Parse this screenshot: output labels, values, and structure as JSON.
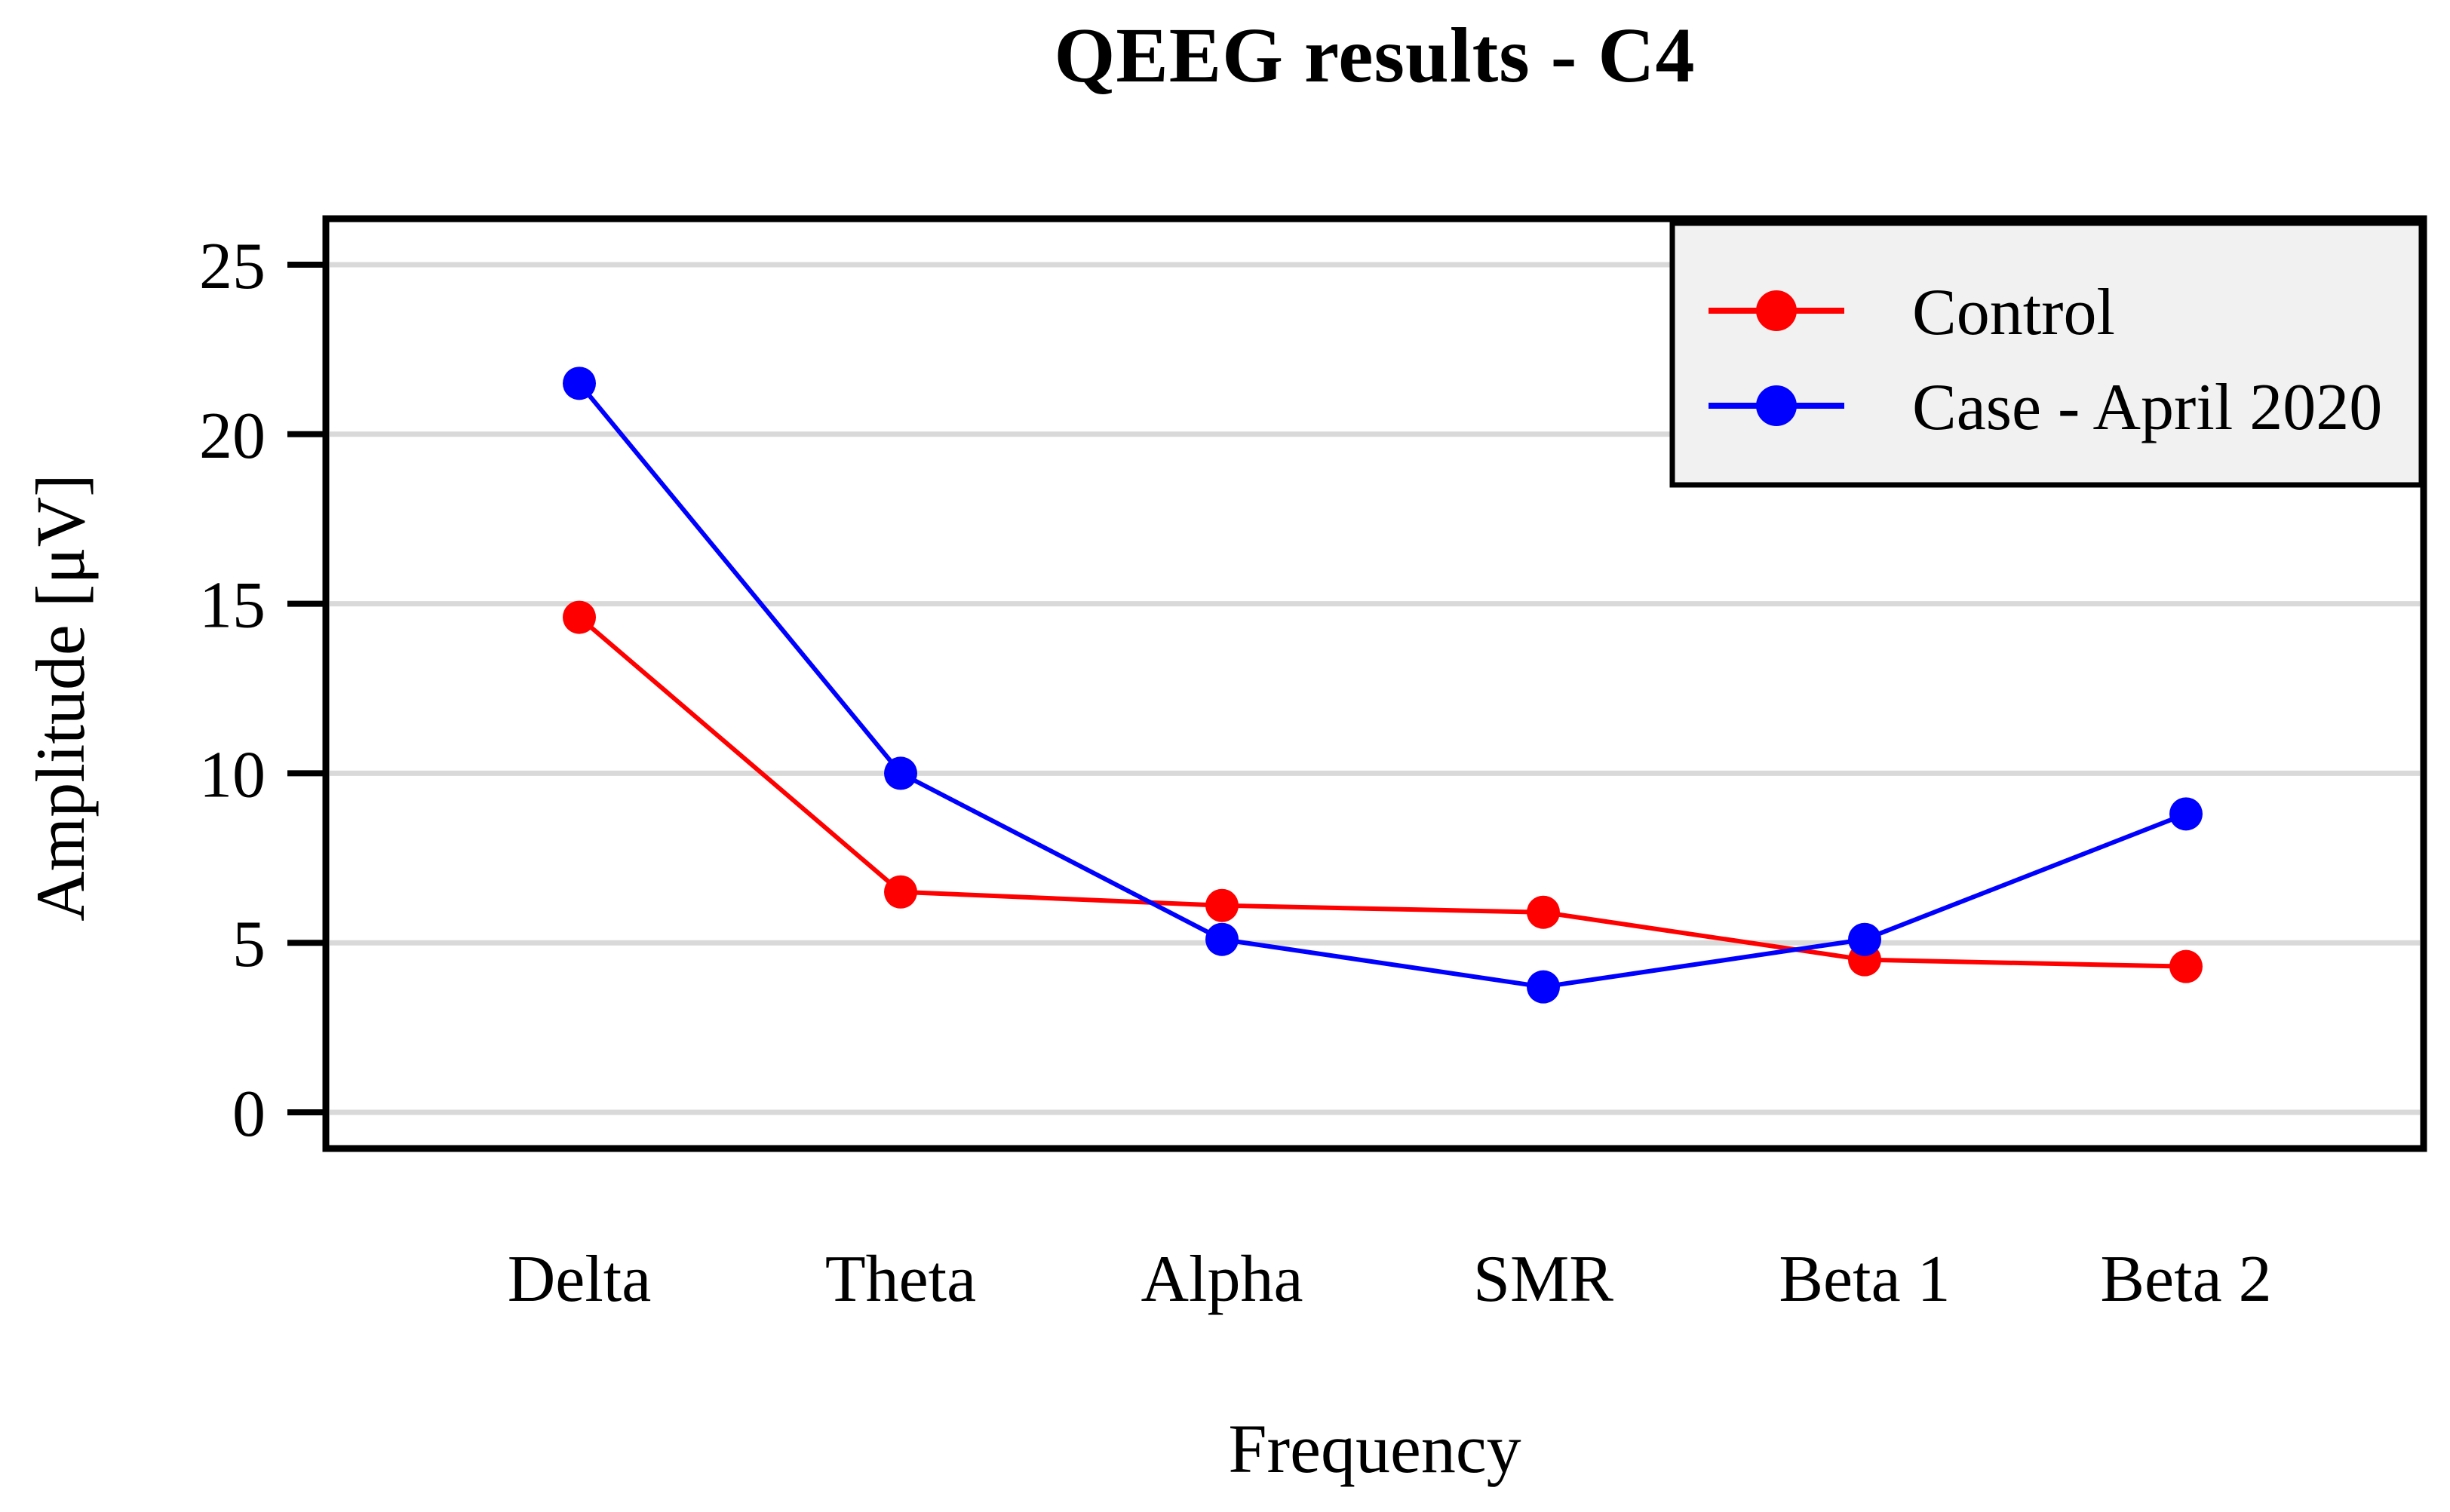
{
  "title": "QEEG results - C4",
  "chart_data": {
    "type": "line",
    "title": "QEEG results - C4",
    "xlabel": "Frequency",
    "ylabel": "Amplitude [μV]",
    "categories": [
      "Delta",
      "Theta",
      "Alpha",
      "SMR",
      "Beta 1",
      "Beta 2"
    ],
    "series": [
      {
        "name": "Control",
        "color": "#ff0000",
        "values": [
          14.6,
          6.5,
          6.1,
          5.9,
          4.5,
          4.3
        ]
      },
      {
        "name": "Case - April 2020",
        "color": "#0000ff",
        "values": [
          21.5,
          10.0,
          5.1,
          3.7,
          5.1,
          8.8
        ]
      }
    ],
    "ylim": [
      0,
      25
    ],
    "y_ticks": [
      0,
      5,
      10,
      15,
      20,
      25
    ],
    "grid": true,
    "gridline_color": "#d9d9d9",
    "axis_color": "#000000",
    "legend_position": "top-right",
    "legend_background": "#f1f1f1",
    "marker": "circle",
    "plot_background": "#ffffff"
  }
}
